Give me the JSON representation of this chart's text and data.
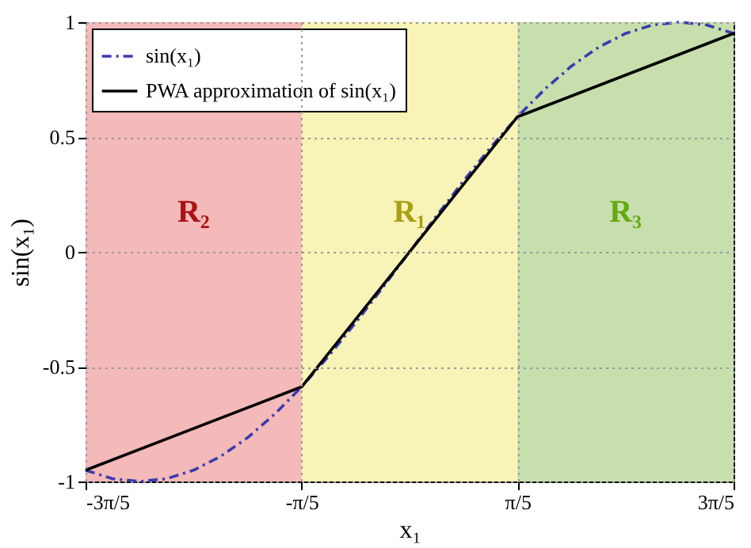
{
  "chart_data": {
    "type": "line",
    "xlabel": "x₁",
    "ylabel": "sin(x₁)",
    "xlim": [
      -1.885,
      1.885
    ],
    "xticks": [
      {
        "value": -1.885,
        "label": "-3π/5"
      },
      {
        "value": -0.628,
        "label": "-π/5"
      },
      {
        "value": 0.628,
        "label": "π/5"
      },
      {
        "value": 1.885,
        "label": "3π/5"
      }
    ],
    "ylim": [
      -1,
      1
    ],
    "yticks": [
      -1,
      -0.5,
      0,
      0.5,
      1
    ],
    "grid": true,
    "legend": "top left",
    "marker": "none",
    "bands": [
      {
        "axis": "x",
        "from": -1.885,
        "to": -0.628,
        "label": "R₂",
        "color": "#f4b9b9"
      },
      {
        "axis": "x",
        "from": -0.628,
        "to": 0.628,
        "label": "R₁",
        "color": "#f8f3b6"
      },
      {
        "axis": "x",
        "from": 0.628,
        "to": 1.885,
        "label": "R₃",
        "color": "#c8dfad"
      }
    ],
    "series": [
      {
        "name": "sin(x₁)",
        "color": "#3b3bb0",
        "line_style": "dashed",
        "x": [
          -1.885,
          -1.728,
          -1.571,
          -1.414,
          -1.257,
          -1.1,
          -0.942,
          -0.785,
          -0.628,
          -0.471,
          -0.314,
          -0.157,
          0,
          0.157,
          0.314,
          0.471,
          0.628,
          0.785,
          0.942,
          1.1,
          1.257,
          1.414,
          1.571,
          1.728,
          1.885
        ],
        "values": [
          -0.951,
          -0.988,
          -1,
          -0.988,
          -0.951,
          -0.891,
          -0.809,
          -0.707,
          -0.588,
          -0.454,
          -0.309,
          -0.156,
          0,
          0.156,
          0.309,
          0.454,
          0.588,
          0.707,
          0.809,
          0.891,
          0.951,
          0.988,
          1,
          0.988,
          0.951
        ]
      },
      {
        "name": "PWA approximation of sin(x₁)",
        "color": "#000000",
        "line_style": "solid",
        "x": [
          -1.885,
          -0.628,
          0.628,
          1.885
        ],
        "values": [
          -0.951,
          -0.588,
          0.588,
          0.951
        ]
      }
    ]
  }
}
